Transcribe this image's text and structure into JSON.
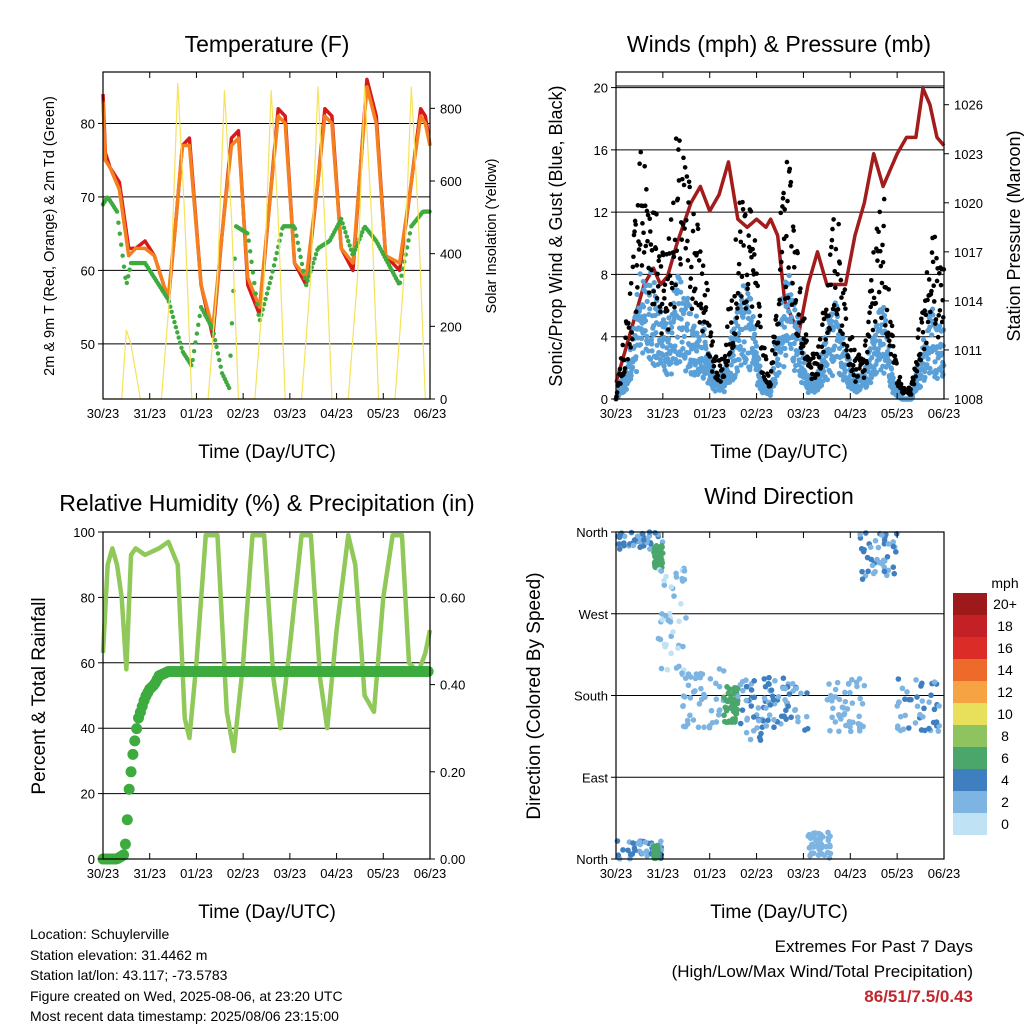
{
  "colors": {
    "temp_2m": "#d7191c",
    "temp_9m": "#f4801f",
    "dewpoint": "#3dab3d",
    "solar": "#f5e35a",
    "gust": "#000000",
    "wind": "#5aa0d8",
    "pressure": "#a31c1c",
    "rh": "#90c859",
    "precip": "#3dab3d",
    "extremes": "#c1272d"
  },
  "x_ticks": [
    "30/23",
    "31/23",
    "01/23",
    "02/23",
    "03/23",
    "04/23",
    "05/23",
    "06/23"
  ],
  "info": {
    "location": "Location: Schuylerville",
    "elevation": "Station elevation: 31.4462 m",
    "latlon": "Station lat/lon: 43.117; -73.5783",
    "created": "Figure created on Wed, 2025-08-06, at 23:20 UTC",
    "recent": "Most recent data timestamp: 2025/08/06 23:15:00"
  },
  "extremes": {
    "title": "Extremes For Past 7 Days",
    "subtitle": "(High/Low/Max Wind/Total Precipitation)",
    "values": "86/51/7.5/0.43"
  },
  "chart_data": [
    {
      "type": "line",
      "title": "Temperature (F)",
      "xlabel": "Time (Day/UTC)",
      "ylabel": "2m & 9m T (Red, Orange) & 2m Td (Green)",
      "ylabel_right": "Solar Insolation (Yellow)",
      "xlim": [
        0,
        7
      ],
      "ylim": [
        42.5,
        87
      ],
      "yticks": [
        50,
        60,
        70,
        80
      ],
      "ylim_right": [
        0,
        900
      ],
      "yticks_right": [
        0,
        200,
        400,
        600,
        800
      ],
      "grid": "horizontal",
      "series": [
        {
          "key": "temp_2m",
          "x": [
            0,
            0.05,
            0.15,
            0.35,
            0.55,
            0.7,
            0.9,
            1.1,
            1.3,
            1.4,
            1.55,
            1.7,
            1.85,
            2.1,
            2.35,
            2.55,
            2.75,
            2.9,
            3.1,
            3.35,
            3.55,
            3.75,
            3.9,
            4.1,
            4.35,
            4.6,
            4.75,
            4.9,
            5.1,
            5.35,
            5.65,
            5.85,
            6.05,
            6.35,
            6.6,
            6.8,
            6.9,
            7.0
          ],
          "values": [
            84,
            76,
            74,
            72,
            63,
            63,
            64,
            62,
            58,
            56,
            66,
            77,
            78,
            58,
            51,
            65,
            78,
            79,
            58,
            54,
            68,
            82,
            81,
            61,
            58,
            72,
            82,
            81,
            63,
            60,
            86,
            81,
            62,
            60,
            72,
            82,
            81,
            77
          ]
        },
        {
          "key": "temp_9m",
          "x": [
            0,
            0.05,
            0.15,
            0.35,
            0.55,
            0.7,
            0.9,
            1.1,
            1.3,
            1.4,
            1.55,
            1.7,
            1.85,
            2.1,
            2.35,
            2.55,
            2.75,
            2.9,
            3.1,
            3.35,
            3.55,
            3.75,
            3.9,
            4.1,
            4.35,
            4.6,
            4.75,
            4.9,
            5.1,
            5.35,
            5.65,
            5.85,
            6.05,
            6.35,
            6.6,
            6.8,
            6.9,
            7.0
          ],
          "values": [
            83,
            75,
            74,
            71,
            62,
            63,
            63,
            62,
            58,
            56.5,
            66,
            77,
            77,
            58,
            52,
            65,
            77,
            78,
            59,
            55,
            68,
            81,
            80,
            61,
            59,
            72,
            81,
            80,
            63,
            61,
            85,
            80,
            62,
            61,
            72,
            81,
            80,
            77
          ]
        },
        {
          "key": "dewpoint",
          "x": [
            0,
            0.1,
            0.3,
            0.5,
            0.6,
            0.9,
            1.2,
            1.4,
            1.7,
            1.9,
            2.1,
            2.35,
            2.55,
            2.7,
            2.85,
            3.1,
            3.35,
            3.6,
            3.85,
            4.1,
            4.35,
            4.6,
            4.85,
            5.1,
            5.35,
            5.6,
            5.85,
            6.1,
            6.35,
            6.6,
            6.85,
            7.0
          ],
          "values": [
            69,
            70,
            68,
            58,
            61,
            61,
            58,
            56,
            49,
            47,
            55,
            52,
            46,
            44,
            66,
            65,
            53,
            59,
            66,
            66,
            58,
            63,
            64,
            67,
            62,
            66,
            64,
            61,
            58,
            66,
            68,
            68
          ]
        },
        {
          "key": "solar",
          "axis": "right",
          "x": [
            0,
            0.2,
            0.4,
            0.5,
            0.6,
            0.8,
            1.25,
            1.45,
            1.6,
            1.75,
            1.9,
            2.25,
            2.45,
            2.6,
            2.75,
            2.9,
            3.25,
            3.45,
            3.6,
            3.75,
            3.9,
            4.25,
            4.45,
            4.6,
            4.75,
            4.9,
            5.25,
            5.45,
            5.6,
            5.75,
            5.9,
            6.25,
            6.45,
            6.6,
            6.75,
            6.9,
            7.0
          ],
          "values": [
            0,
            0,
            0,
            190,
            150,
            0,
            0,
            320,
            870,
            500,
            0,
            0,
            330,
            850,
            500,
            0,
            0,
            330,
            850,
            500,
            0,
            0,
            340,
            860,
            480,
            0,
            0,
            340,
            860,
            500,
            0,
            0,
            350,
            860,
            500,
            0,
            0
          ]
        }
      ]
    },
    {
      "type": "line",
      "title": "Winds (mph) & Pressure (mb)",
      "xlabel": "Time (Day/UTC)",
      "ylabel": "Sonic/Prop Wind & Gust (Blue, Black)",
      "ylabel_right": "Station Pressure (Maroon)",
      "xlim": [
        0,
        7
      ],
      "ylim": [
        0,
        21
      ],
      "yticks": [
        0,
        4,
        8,
        12,
        16,
        20
      ],
      "ylim_right": [
        1008,
        1028
      ],
      "yticks_right": [
        1008,
        1011,
        1014,
        1017,
        1020,
        1023,
        1026
      ],
      "grid": "horizontal",
      "series": [
        {
          "key": "pressure",
          "axis": "right",
          "x": [
            0,
            0.3,
            0.6,
            0.8,
            0.95,
            1.1,
            1.3,
            1.6,
            1.8,
            2.0,
            2.2,
            2.4,
            2.6,
            2.8,
            3.0,
            3.2,
            3.3,
            3.45,
            3.6,
            3.75,
            3.9,
            4.1,
            4.3,
            4.5,
            4.7,
            4.9,
            5.1,
            5.3,
            5.5,
            5.7,
            5.85,
            6.0,
            6.2,
            6.4,
            6.55,
            6.7,
            6.85,
            7.0
          ],
          "values": [
            1009,
            1012,
            1015,
            1016,
            1015,
            1015.5,
            1017.5,
            1020,
            1021,
            1019.5,
            1020.5,
            1022.5,
            1019,
            1018.5,
            1019,
            1018.5,
            1019,
            1018,
            1014,
            1013,
            1012,
            1015,
            1017,
            1015,
            1015,
            1015,
            1018,
            1020,
            1023,
            1021,
            1022,
            1023,
            1024,
            1024,
            1027,
            1026,
            1024,
            1023.5
          ]
        },
        {
          "key": "wind",
          "x": [
            0,
            0.3,
            0.5,
            0.7,
            0.9,
            1.1,
            1.3,
            1.6,
            1.9,
            2.1,
            2.3,
            2.5,
            2.7,
            2.9,
            3.1,
            3.3,
            3.5,
            3.7,
            3.9,
            4.1,
            4.3,
            4.5,
            4.7,
            4.9,
            5.1,
            5.3,
            5.5,
            5.7,
            5.9,
            6.1,
            6.3,
            6.5,
            6.7,
            6.9,
            7.0
          ],
          "values": [
            0,
            2,
            5,
            6,
            4,
            3,
            5,
            4,
            3,
            1,
            1,
            3,
            5,
            4,
            1,
            0.5,
            4,
            6,
            3,
            1,
            1,
            3,
            4,
            2,
            1,
            1,
            3,
            4,
            1,
            0,
            0,
            2,
            4,
            3,
            3
          ]
        },
        {
          "key": "gust",
          "x": [
            0,
            0.3,
            0.5,
            0.7,
            0.9,
            1.1,
            1.3,
            1.6,
            1.9,
            2.1,
            2.3,
            2.5,
            2.7,
            2.9,
            3.1,
            3.3,
            3.5,
            3.7,
            3.9,
            4.1,
            4.3,
            4.5,
            4.7,
            4.9,
            5.1,
            5.3,
            5.5,
            5.7,
            5.9,
            6.1,
            6.3,
            6.5,
            6.7,
            6.9,
            7.0
          ],
          "values": [
            0,
            5,
            12,
            11,
            8,
            7,
            12,
            10,
            6,
            2,
            2,
            6,
            10,
            9,
            3,
            1,
            8,
            12,
            6,
            2,
            2,
            6,
            9,
            5,
            2,
            2,
            7,
            10,
            3,
            0.5,
            0.5,
            4,
            8,
            7,
            6
          ]
        }
      ]
    },
    {
      "type": "line",
      "title": "Relative Humidity (%) & Precipitation (in)",
      "xlabel": "Time (Day/UTC)",
      "ylabel": "Percent & Total Rainfall",
      "xlim": [
        0,
        7
      ],
      "ylim": [
        0,
        100
      ],
      "yticks": [
        0,
        20,
        40,
        60,
        80,
        100
      ],
      "ylim_right": [
        0,
        0.75
      ],
      "yticks_right": [
        0.0,
        0.2,
        0.4,
        0.6
      ],
      "grid": "horizontal",
      "series": [
        {
          "key": "rh",
          "x": [
            0,
            0.1,
            0.2,
            0.3,
            0.4,
            0.5,
            0.6,
            0.7,
            0.9,
            1.2,
            1.4,
            1.6,
            1.75,
            1.85,
            2.0,
            2.2,
            2.45,
            2.65,
            2.8,
            3.0,
            3.2,
            3.45,
            3.65,
            3.8,
            4.0,
            4.25,
            4.45,
            4.65,
            4.8,
            5.0,
            5.25,
            5.4,
            5.6,
            5.8,
            6.0,
            6.2,
            6.4,
            6.55,
            6.75,
            6.9,
            7.0
          ],
          "values": [
            63,
            90,
            95,
            90,
            80,
            58,
            93,
            95,
            93,
            95,
            97,
            90,
            43,
            37,
            60,
            99,
            99,
            45,
            33,
            60,
            99,
            99,
            55,
            40,
            65,
            99,
            99,
            55,
            40,
            70,
            99,
            90,
            50,
            45,
            80,
            99,
            99,
            60,
            57,
            63,
            70
          ]
        },
        {
          "key": "precip",
          "axis": "right",
          "x": [
            0,
            0.3,
            0.45,
            0.5,
            0.55,
            0.65,
            0.75,
            0.9,
            1.0,
            1.1,
            1.2,
            1.4,
            2.0,
            3.0,
            4.0,
            5.0,
            6.0,
            7.0
          ],
          "values": [
            0,
            0,
            0.01,
            0.05,
            0.15,
            0.25,
            0.32,
            0.37,
            0.39,
            0.4,
            0.42,
            0.43,
            0.43,
            0.43,
            0.43,
            0.43,
            0.43,
            0.43
          ]
        }
      ]
    },
    {
      "type": "scatter",
      "title": "Wind Direction",
      "xlabel": "Time (Day/UTC)",
      "ylabel": "Direction (Colored By Speed)",
      "xlim": [
        0,
        7
      ],
      "ylim": [
        0,
        360
      ],
      "yticks": [
        0,
        90,
        180,
        270,
        360
      ],
      "ytick_labels": [
        "North",
        "East",
        "South",
        "West",
        "North"
      ],
      "grid": "horizontal",
      "legend": {
        "title": "mph",
        "labels": [
          "20+",
          "18",
          "16",
          "14",
          "12",
          "10",
          "8",
          "6",
          "4",
          "2",
          "0"
        ],
        "colors": [
          "#9e1a1a",
          "#c42126",
          "#dc2c27",
          "#ee6a2b",
          "#f6a443",
          "#e8e05a",
          "#8fc360",
          "#4aa66b",
          "#3f7fbf",
          "#7db4e2",
          "#bfe3f5"
        ],
        "placement": "right"
      },
      "clusters": [
        {
          "x": [
            0,
            1.0
          ],
          "y": [
            340,
            360
          ],
          "speed": 3
        },
        {
          "x": [
            0.8,
            1.0
          ],
          "y": [
            320,
            345
          ],
          "speed": 6
        },
        {
          "x": [
            0,
            1.0
          ],
          "y": [
            0,
            20
          ],
          "speed": 3
        },
        {
          "x": [
            0.8,
            0.9
          ],
          "y": [
            0,
            15
          ],
          "speed": 6
        },
        {
          "x": [
            0.9,
            1.5
          ],
          "y": [
            200,
            320
          ],
          "speed": 1
        },
        {
          "x": [
            1.4,
            2.3
          ],
          "y": [
            140,
            210
          ],
          "speed": 2
        },
        {
          "x": [
            2.3,
            2.6
          ],
          "y": [
            150,
            190
          ],
          "speed": 6
        },
        {
          "x": [
            2.6,
            3.3
          ],
          "y": [
            130,
            200
          ],
          "speed": 3
        },
        {
          "x": [
            3.2,
            4.1
          ],
          "y": [
            140,
            200
          ],
          "speed": 3
        },
        {
          "x": [
            4.1,
            4.6
          ],
          "y": [
            0,
            30
          ],
          "speed": 2
        },
        {
          "x": [
            4.5,
            5.3
          ],
          "y": [
            140,
            200
          ],
          "speed": 2
        },
        {
          "x": [
            5.2,
            6.0
          ],
          "y": [
            300,
            360
          ],
          "speed": 3
        },
        {
          "x": [
            6.0,
            7.0
          ],
          "y": [
            140,
            200
          ],
          "speed": 3
        }
      ]
    }
  ]
}
